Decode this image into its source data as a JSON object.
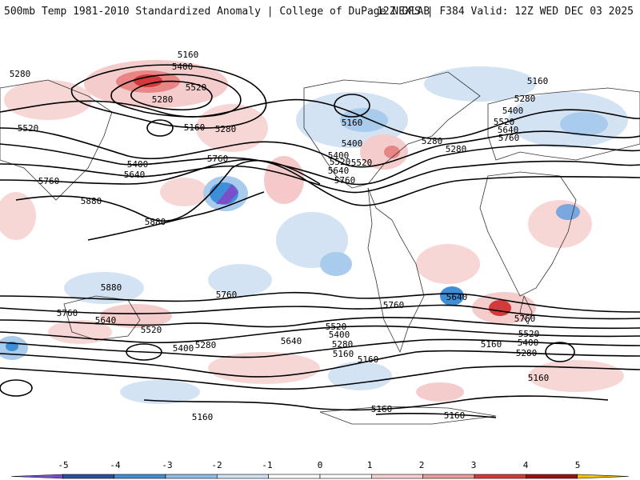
{
  "header": {
    "left": "500mb Temp 1981-2010 Standardized Anomaly | College of DuPage NEXLAB",
    "right": "12Z GFS | F384 Valid: 12Z WED DEC 03 2025"
  },
  "contour_labels": {
    "c1": "5160",
    "c2": "5400",
    "c3": "5520",
    "c4": "5280",
    "c5": "5280",
    "c6": "5520",
    "c7": "5160",
    "c8": "5280",
    "c9": "5400",
    "c10": "5640",
    "c11": "5760",
    "c12": "5880",
    "c13": "5880",
    "c14": "5760",
    "c15": "5880",
    "c16": "5160",
    "c17": "5400",
    "c18": "5640",
    "c19": "5760",
    "c20": "5520",
    "c21": "5280",
    "c22": "5160",
    "c23": "5280",
    "c24": "5400",
    "c25": "5520",
    "c26": "5640",
    "c27": "5760",
    "c28": "5760",
    "c29": "5640",
    "c30": "5520",
    "c31": "5400",
    "c32": "5280",
    "c33": "5760",
    "c34": "5640",
    "c35": "5520",
    "c36": "5400",
    "c37": "5280",
    "c38": "5160",
    "c39": "5760",
    "c40": "5640",
    "c41": "5760",
    "c42": "5520",
    "c43": "5400",
    "c44": "5280",
    "c45": "5160",
    "c46": "5160",
    "c47": "5160",
    "c48": "5160",
    "c49": "5160",
    "c50": "5520",
    "c51": "5400",
    "c52": "5280",
    "c53": "5160"
  },
  "colorbar": {
    "ticks": [
      "-5",
      "-4",
      "-3",
      "-2",
      "-1",
      "0",
      "1",
      "2",
      "3",
      "4",
      "5"
    ],
    "colors": [
      "#7a4fc9",
      "#2e4f9e",
      "#3f8fd8",
      "#8fbde8",
      "#cfe1f3",
      "#ffffff",
      "#ffffff",
      "#f7d2d2",
      "#ee9a9a",
      "#d9383a",
      "#9e1016",
      "#f2c200"
    ]
  }
}
